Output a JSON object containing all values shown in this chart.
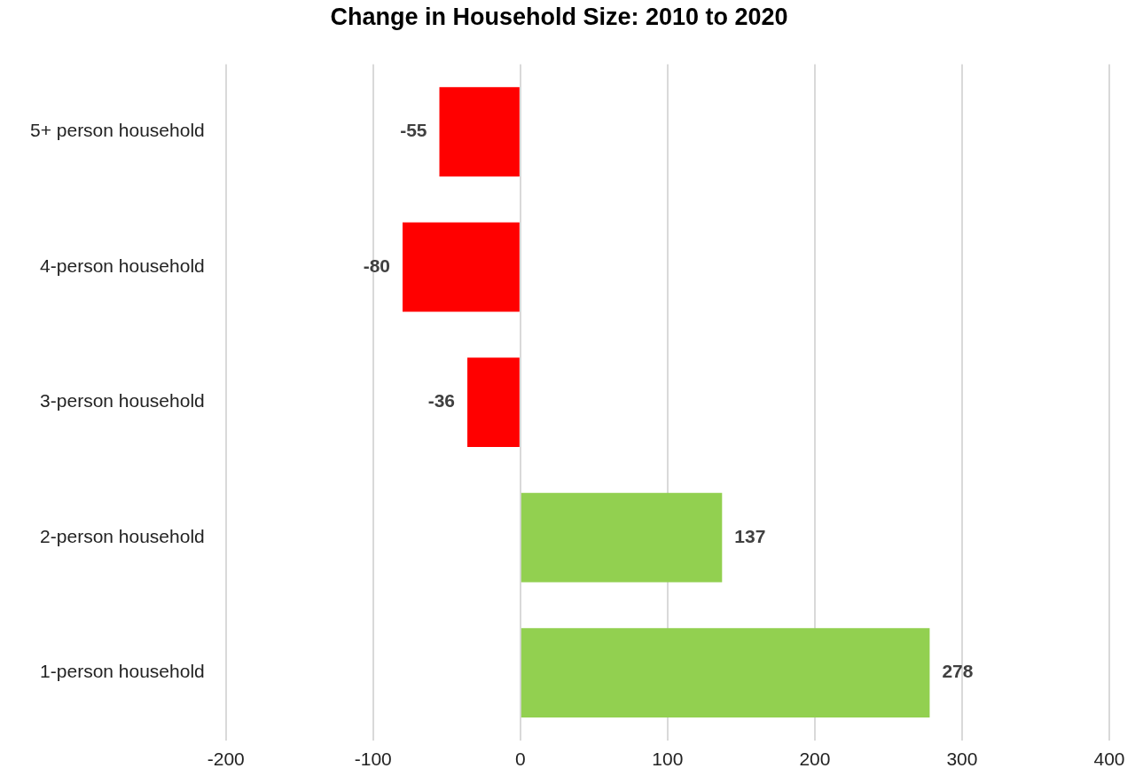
{
  "chart_data": {
    "type": "bar",
    "orientation": "horizontal",
    "title": "Change in Household Size: 2010 to 2020",
    "categories": [
      "5+ person household",
      "4-person household",
      "3-person household",
      "2-person household",
      "1-person household"
    ],
    "values": [
      -55,
      -80,
      -36,
      137,
      278
    ],
    "colors": [
      "#ff0000",
      "#ff0000",
      "#ff0000",
      "#92d050",
      "#92d050"
    ],
    "xlim": [
      -200,
      400
    ],
    "xticks": [
      -200,
      -100,
      0,
      100,
      200,
      300,
      400
    ],
    "grid": "x",
    "data_labels": true
  }
}
